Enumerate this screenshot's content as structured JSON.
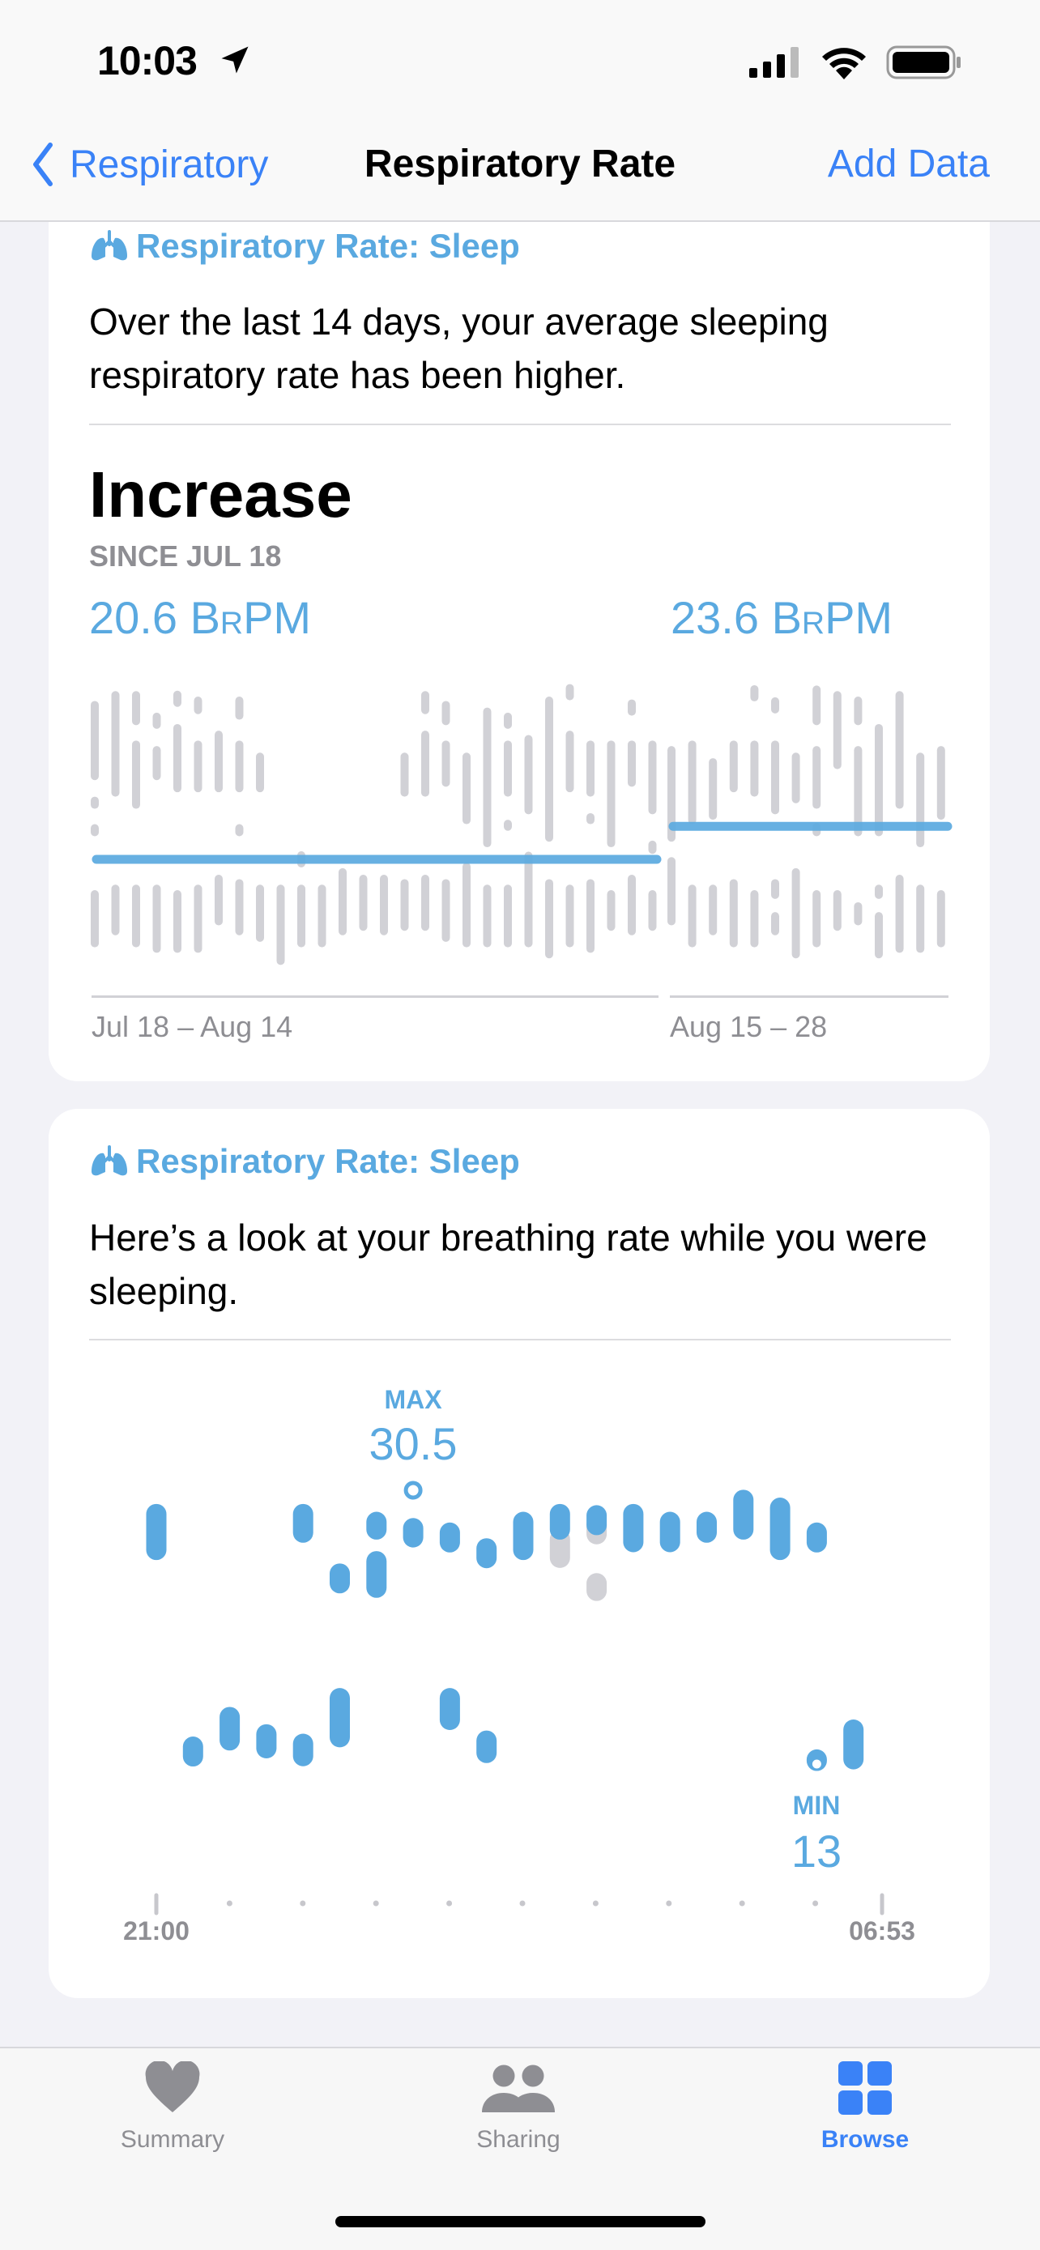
{
  "status_bar": {
    "time": "10:03",
    "icons": [
      "location-arrow-icon",
      "cellular-signal-icon",
      "wifi-icon",
      "battery-icon"
    ]
  },
  "nav": {
    "back_label": "Respiratory",
    "title": "Respiratory Rate",
    "action_label": "Add Data"
  },
  "colors": {
    "accent": "#3a82f7",
    "chart_blue": "#5aa9e0",
    "chart_gray": "#d1d1d6"
  },
  "card1": {
    "header": "Respiratory Rate: Sleep",
    "icon": "lungs-icon",
    "description": "Over the last 14 days, your average sleeping respiratory rate has been higher.",
    "trend": "Increase",
    "since": "SINCE JUL 18",
    "left_value": "20.6",
    "left_unit": "BrPM",
    "right_value": "23.6",
    "right_unit": "BrPM",
    "left_range_label": "Jul 18 – Aug 14",
    "right_range_label": "Aug 15 – 28"
  },
  "card2": {
    "header": "Respiratory Rate: Sleep",
    "icon": "lungs-icon",
    "description": "Here’s a look at your breathing rate while you were sleeping.",
    "max_label": "MAX",
    "max_value": "30.5",
    "min_label": "MIN",
    "min_value": "13",
    "start_time": "21:00",
    "end_time": "06:53"
  },
  "chart_data": [
    {
      "type": "bar",
      "unit": "BrPM",
      "periods": [
        {
          "label": "Jul 18 – Aug 14",
          "average": 20.6,
          "days": [
            [
              [
                35.0,
                27.8
              ],
              [
                26.3,
                25.2
              ],
              [
                23.8,
                22.7
              ],
              [
                17.8,
                12.6
              ]
            ],
            [
              [
                35.9,
                26.3
              ],
              [
                18.3,
                13.7
              ]
            ],
            [
              [
                35.9,
                32.8
              ],
              [
                31.4,
                25.2
              ],
              [
                18.3,
                12.6
              ]
            ],
            [
              [
                33.2,
                33.2
              ],
              [
                30.9,
                27.8
              ],
              [
                18.3,
                12.1
              ]
            ],
            [
              [
                35.2,
                35.2
              ],
              [
                32.9,
                26.7
              ],
              [
                17.8,
                12.1
              ]
            ],
            [
              [
                35.4,
                33.8
              ],
              [
                31.4,
                26.7
              ],
              [
                18.3,
                12.1
              ]
            ],
            [
              [
                32.3,
                26.7
              ],
              [
                19.2,
                14.6
              ]
            ],
            [
              [
                35.4,
                33.3
              ],
              [
                31.4,
                26.7
              ],
              [
                23.8,
                22.7
              ],
              [
                18.8,
                13.7
              ]
            ],
            [
              [
                30.3,
                26.7
              ],
              [
                18.3,
                13.1
              ]
            ],
            [
              [
                18.3,
                11.0
              ]
            ],
            [
              [
                20.6,
                20.6
              ],
              [
                18.3,
                12.6
              ]
            ],
            [
              [
                18.3,
                12.6
              ]
            ],
            [
              [
                19.8,
                13.7
              ]
            ],
            [
              [
                19.2,
                14.1
              ]
            ],
            [
              [
                19.2,
                13.7
              ]
            ],
            [
              [
                30.3,
                26.3
              ],
              [
                18.8,
                14.1
              ]
            ],
            [
              [
                35.9,
                33.8
              ],
              [
                32.3,
                26.3
              ],
              [
                19.2,
                14.1
              ]
            ],
            [
              [
                35.0,
                32.8
              ],
              [
                31.4,
                27.2
              ],
              [
                18.8,
                13.1
              ]
            ],
            [
              [
                30.3,
                23.8
              ],
              [
                20.3,
                12.6
              ]
            ],
            [
              [
                34.4,
                21.7
              ],
              [
                18.3,
                12.6
              ]
            ],
            [
              [
                33.2,
                33.2
              ],
              [
                31.4,
                26.3
              ],
              [
                24.2,
                23.2
              ],
              [
                18.3,
                12.6
              ]
            ],
            [
              [
                31.9,
                24.7
              ],
              [
                21.3,
                12.6
              ]
            ],
            [
              [
                35.4,
                22.2
              ],
              [
                18.8,
                11.6
              ]
            ],
            [
              [
                35.8,
                35.8
              ],
              [
                32.3,
                26.7
              ],
              [
                18.3,
                12.6
              ]
            ],
            [
              [
                31.4,
                26.3
              ],
              [
                24.8,
                23.8
              ],
              [
                18.8,
                12.1
              ]
            ],
            [
              [
                31.4,
                21.7
              ],
              [
                17.8,
                14.1
              ]
            ],
            [
              [
                34.4,
                34.4
              ],
              [
                31.4,
                27.2
              ],
              [
                19.2,
                13.7
              ]
            ],
            [
              [
                31.4,
                24.7
              ],
              [
                22.3,
                21.1
              ],
              [
                17.8,
                14.1
              ]
            ]
          ]
        },
        {
          "label": "Aug 15 – 28",
          "average": 23.6,
          "days": [
            [
              [
                30.9,
                22.2
              ],
              [
                20.8,
                14.6
              ]
            ],
            [
              [
                31.4,
                23.8
              ],
              [
                18.3,
                12.6
              ]
            ],
            [
              [
                29.8,
                24.2
              ],
              [
                18.3,
                13.7
              ]
            ],
            [
              [
                31.4,
                26.7
              ],
              [
                18.8,
                12.6
              ]
            ],
            [
              [
                35.7,
                35.7
              ],
              [
                31.4,
                26.3
              ],
              [
                17.8,
                12.6
              ]
            ],
            [
              [
                34.6,
                34.6
              ],
              [
                31.4,
                24.7
              ],
              [
                18.8,
                17.0
              ],
              [
                15.8,
                13.7
              ]
            ],
            [
              [
                30.3,
                25.7
              ],
              [
                19.8,
                11.6
              ]
            ],
            [
              [
                36.4,
                32.8
              ],
              [
                30.9,
                25.2
              ],
              [
                23.9,
                22.7
              ],
              [
                17.8,
                12.6
              ]
            ],
            [
              [
                35.9,
                28.8
              ],
              [
                17.8,
                14.1
              ]
            ],
            [
              [
                35.4,
                32.8
              ],
              [
                30.9,
                22.7
              ],
              [
                16.7,
                14.6
              ]
            ],
            [
              [
                32.9,
                22.7
              ],
              [
                18.3,
                17.0
              ],
              [
                15.8,
                11.6
              ]
            ],
            [
              [
                35.9,
                25.2
              ],
              [
                19.2,
                12.1
              ]
            ],
            [
              [
                30.3,
                21.7
              ],
              [
                18.3,
                12.1
              ]
            ],
            [
              [
                30.9,
                24.2
              ],
              [
                17.8,
                12.6
              ]
            ]
          ]
        }
      ]
    },
    {
      "type": "bar",
      "unit": "BrPM",
      "x_start": "21:00",
      "x_end": "06:53",
      "max": 30.5,
      "min": 13,
      "columns": [
        [
          {
            "range": [
              29.3,
              26.4
            ],
            "color": "blue"
          }
        ],
        [
          {
            "range": [
              13.9,
              13.9
            ],
            "color": "blue"
          }
        ],
        [
          {
            "range": [
              16.4,
              14.3
            ],
            "color": "blue"
          }
        ],
        [
          {
            "range": [
              15.3,
              13.8
            ],
            "color": "blue"
          }
        ],
        [
          {
            "range": [
              29.3,
              27.5
            ],
            "color": "blue"
          },
          {
            "range": [
              14.7,
              13.3
            ],
            "color": "blue"
          }
        ],
        [
          {
            "range": [
              24.9,
              24.9
            ],
            "color": "blue"
          },
          {
            "range": [
              17.6,
              14.5
            ],
            "color": "blue"
          }
        ],
        [
          {
            "range": [
              28.8,
              27.7
            ],
            "color": "blue"
          },
          {
            "range": [
              26.3,
              24.0
            ],
            "color": "blue"
          }
        ],
        [
          {
            "range": [
              28.4,
              27.2
            ],
            "color": "blue"
          }
        ],
        [
          {
            "range": [
              27.5,
              27.5
            ],
            "color": "blue"
          },
          {
            "range": [
              17.6,
              15.6
            ],
            "color": "blue"
          }
        ],
        [
          {
            "range": [
              26.5,
              26.5
            ],
            "color": "blue"
          },
          {
            "range": [
              14.9,
              13.5
            ],
            "color": "blue"
          }
        ],
        [
          {
            "range": [
              28.8,
              26.4
            ],
            "color": "blue"
          }
        ],
        [
          {
            "range": [
              27.7,
              25.9
            ],
            "color": "gray"
          },
          {
            "range": [
              29.3,
              27.7
            ],
            "color": "blue"
          }
        ],
        [
          {
            "range": [
              28.6,
              27.4
            ],
            "color": "gray"
          },
          {
            "range": [
              24.9,
              23.8
            ],
            "color": "gray"
          },
          {
            "range": [
              28.6,
              28.6
            ],
            "color": "blue"
          }
        ],
        [
          {
            "range": [
              29.3,
              26.9
            ],
            "color": "blue"
          }
        ],
        [
          {
            "range": [
              28.8,
              26.9
            ],
            "color": "blue"
          }
        ],
        [
          {
            "range": [
              28.8,
              27.5
            ],
            "color": "blue"
          }
        ],
        [
          {
            "range": [
              30.2,
              27.7
            ],
            "color": "blue"
          }
        ],
        [
          {
            "range": [
              29.7,
              26.4
            ],
            "color": "blue"
          }
        ],
        [
          {
            "range": [
              27.5,
              27.5
            ],
            "color": "blue"
          },
          {
            "range": [
              13.7,
              13.0
            ],
            "color": "blue"
          }
        ],
        [
          {
            "range": [
              15.6,
              13.1
            ],
            "color": "blue"
          }
        ]
      ]
    }
  ],
  "tabbar": {
    "items": [
      {
        "label": "Summary",
        "icon": "heart-icon",
        "active": false
      },
      {
        "label": "Sharing",
        "icon": "people-icon",
        "active": false
      },
      {
        "label": "Browse",
        "icon": "grid-icon",
        "active": true
      }
    ]
  }
}
